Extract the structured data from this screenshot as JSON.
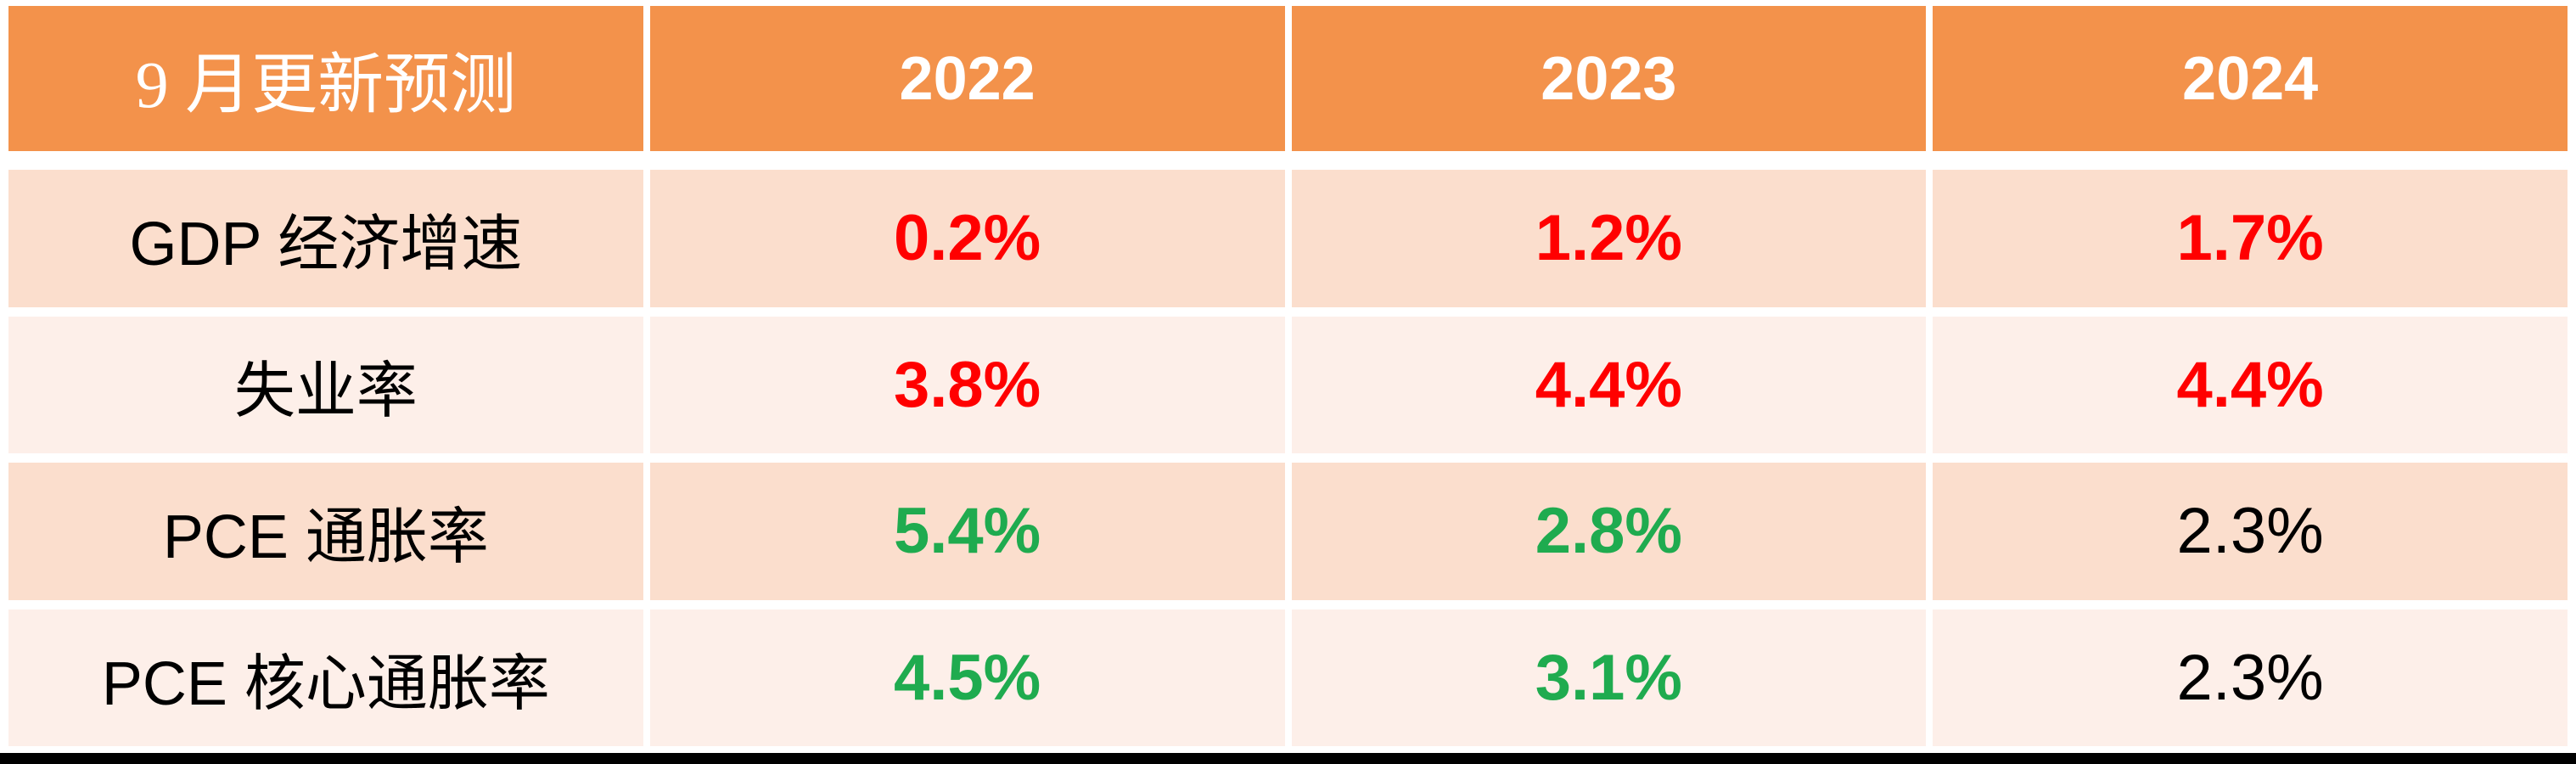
{
  "colors": {
    "header_bg": "#F3924B",
    "header_text": "#FFFFFF",
    "band_dark": "#FBDECD",
    "band_light": "#FDEFE9",
    "red": "#FF0000",
    "green": "#1FAB4F",
    "black": "#000000",
    "bottom_bar": "#000000"
  },
  "table": {
    "header": {
      "title": "9 月更新预测",
      "years": [
        "2022",
        "2023",
        "2024"
      ]
    },
    "rows": [
      {
        "label": "GDP 经济增速",
        "band": "dark",
        "values": [
          {
            "text": "0.2%",
            "color": "red",
            "bold": true
          },
          {
            "text": "1.2%",
            "color": "red",
            "bold": true
          },
          {
            "text": "1.7%",
            "color": "red",
            "bold": true
          }
        ]
      },
      {
        "label": "失业率",
        "band": "light",
        "values": [
          {
            "text": "3.8%",
            "color": "red",
            "bold": true
          },
          {
            "text": "4.4%",
            "color": "red",
            "bold": true
          },
          {
            "text": "4.4%",
            "color": "red",
            "bold": true
          }
        ]
      },
      {
        "label": "PCE 通胀率",
        "band": "dark",
        "values": [
          {
            "text": "5.4%",
            "color": "green",
            "bold": true
          },
          {
            "text": "2.8%",
            "color": "green",
            "bold": true
          },
          {
            "text": "2.3%",
            "color": "black",
            "bold": false
          }
        ]
      },
      {
        "label": "PCE 核心通胀率",
        "band": "light",
        "values": [
          {
            "text": "4.5%",
            "color": "green",
            "bold": true
          },
          {
            "text": "3.1%",
            "color": "green",
            "bold": true
          },
          {
            "text": "2.3%",
            "color": "black",
            "bold": false
          }
        ]
      }
    ]
  },
  "chart_data": {
    "type": "table",
    "title": "9 月更新预测",
    "columns": [
      "9 月更新预测",
      "2022",
      "2023",
      "2024"
    ],
    "rows": [
      {
        "label": "GDP 经济增速",
        "values": [
          "0.2%",
          "1.2%",
          "1.7%"
        ]
      },
      {
        "label": "失业率",
        "values": [
          "3.8%",
          "4.4%",
          "4.4%"
        ]
      },
      {
        "label": "PCE 通胀率",
        "values": [
          "5.4%",
          "2.8%",
          "2.3%"
        ]
      },
      {
        "label": "PCE 核心通胀率",
        "values": [
          "4.5%",
          "3.1%",
          "2.3%"
        ]
      }
    ]
  }
}
